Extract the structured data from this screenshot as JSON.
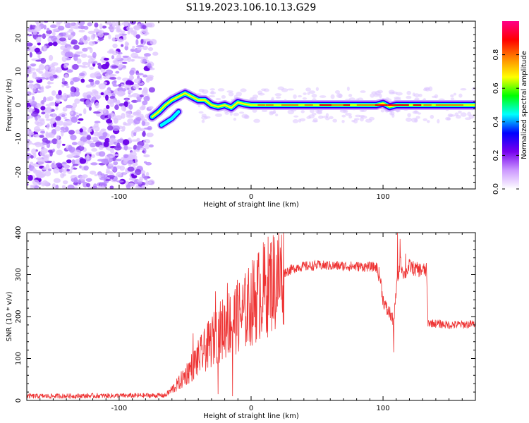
{
  "title": "S119.2023.106.10.13.G29",
  "chart_data": [
    {
      "type": "heatmap",
      "xlabel": "Height of straight line (km)",
      "ylabel": "Frequency (Hz)",
      "xlim": [
        -170,
        170
      ],
      "ylim": [
        -25,
        25
      ],
      "xticks": [
        -100,
        0,
        100
      ],
      "yticks": [
        -20,
        -10,
        0,
        10,
        20
      ],
      "grid": false,
      "colorbar": {
        "label": "Normalized spectral amplitude",
        "ticks": [
          0.0,
          0.2,
          0.4,
          0.6,
          0.8
        ],
        "range": [
          0,
          1
        ],
        "colors": [
          "#ffffff",
          "#cc99ff",
          "#7700ee",
          "#0000ff",
          "#00ffff",
          "#00ff00",
          "#ffff00",
          "#ff8800",
          "#ff0000",
          "#ff0088"
        ]
      },
      "noise_region_x": [
        -170,
        -72
      ],
      "ridge": [
        {
          "x": -75,
          "y": -3.5
        },
        {
          "x": -70,
          "y": -2
        },
        {
          "x": -65,
          "y": 0
        },
        {
          "x": -60,
          "y": 1.5
        },
        {
          "x": -55,
          "y": 2.5
        },
        {
          "x": -50,
          "y": 3.5
        },
        {
          "x": -45,
          "y": 2.5
        },
        {
          "x": -40,
          "y": 1.5
        },
        {
          "x": -35,
          "y": 1.5
        },
        {
          "x": -30,
          "y": 0
        },
        {
          "x": -25,
          "y": -0.5
        },
        {
          "x": -20,
          "y": 0
        },
        {
          "x": -15,
          "y": -0.8
        },
        {
          "x": -10,
          "y": 0.8
        },
        {
          "x": -5,
          "y": 0.3
        },
        {
          "x": 0,
          "y": 0
        },
        {
          "x": 50,
          "y": 0
        },
        {
          "x": 95,
          "y": 0
        },
        {
          "x": 100,
          "y": 0.5
        },
        {
          "x": 105,
          "y": -0.5
        },
        {
          "x": 110,
          "y": 0
        },
        {
          "x": 170,
          "y": 0
        }
      ],
      "secondary_branch": [
        {
          "x": -68,
          "y": -6
        },
        {
          "x": -60,
          "y": -4
        },
        {
          "x": -55,
          "y": -2
        }
      ]
    },
    {
      "type": "line",
      "xlabel": "Height of straight line (km)",
      "ylabel": "SNR (10 * v/v)",
      "xlim": [
        -170,
        170
      ],
      "ylim": [
        0,
        400
      ],
      "xticks": [
        -100,
        0,
        100
      ],
      "yticks": [
        0,
        100,
        200,
        300,
        400
      ],
      "grid": false,
      "series": [
        {
          "color": "#ee3333",
          "envelope": [
            {
              "x": -170,
              "y": 10
            },
            {
              "x": -65,
              "y": 12
            },
            {
              "x": -55,
              "y": 40
            },
            {
              "x": -45,
              "y": 80
            },
            {
              "x": -35,
              "y": 120
            },
            {
              "x": -25,
              "y": 160
            },
            {
              "x": -15,
              "y": 190
            },
            {
              "x": -5,
              "y": 210
            },
            {
              "x": 5,
              "y": 250
            },
            {
              "x": 15,
              "y": 280
            },
            {
              "x": 25,
              "y": 305
            },
            {
              "x": 35,
              "y": 318
            },
            {
              "x": 50,
              "y": 322
            },
            {
              "x": 75,
              "y": 320
            },
            {
              "x": 95,
              "y": 318
            },
            {
              "x": 98,
              "y": 290
            },
            {
              "x": 100,
              "y": 240
            },
            {
              "x": 103,
              "y": 215
            },
            {
              "x": 106,
              "y": 205
            },
            {
              "x": 108,
              "y": 180
            },
            {
              "x": 110,
              "y": 260
            },
            {
              "x": 113,
              "y": 330
            },
            {
              "x": 116,
              "y": 300
            },
            {
              "x": 120,
              "y": 320
            },
            {
              "x": 125,
              "y": 312
            },
            {
              "x": 133,
              "y": 310
            },
            {
              "x": 134,
              "y": 185
            },
            {
              "x": 150,
              "y": 180
            },
            {
              "x": 170,
              "y": 182
            }
          ],
          "spikes": [
            {
              "x": -44,
              "y": 160
            },
            {
              "x": -27,
              "y": 260
            },
            {
              "x": -25,
              "y": 15
            },
            {
              "x": -18,
              "y": 280
            },
            {
              "x": -14,
              "y": 10
            },
            {
              "x": -10,
              "y": 250
            },
            {
              "x": 15,
              "y": 355
            },
            {
              "x": 108,
              "y": 115
            },
            {
              "x": 111,
              "y": 400
            },
            {
              "x": 113,
              "y": 385
            },
            {
              "x": 117,
              "y": 350
            }
          ]
        }
      ]
    }
  ]
}
